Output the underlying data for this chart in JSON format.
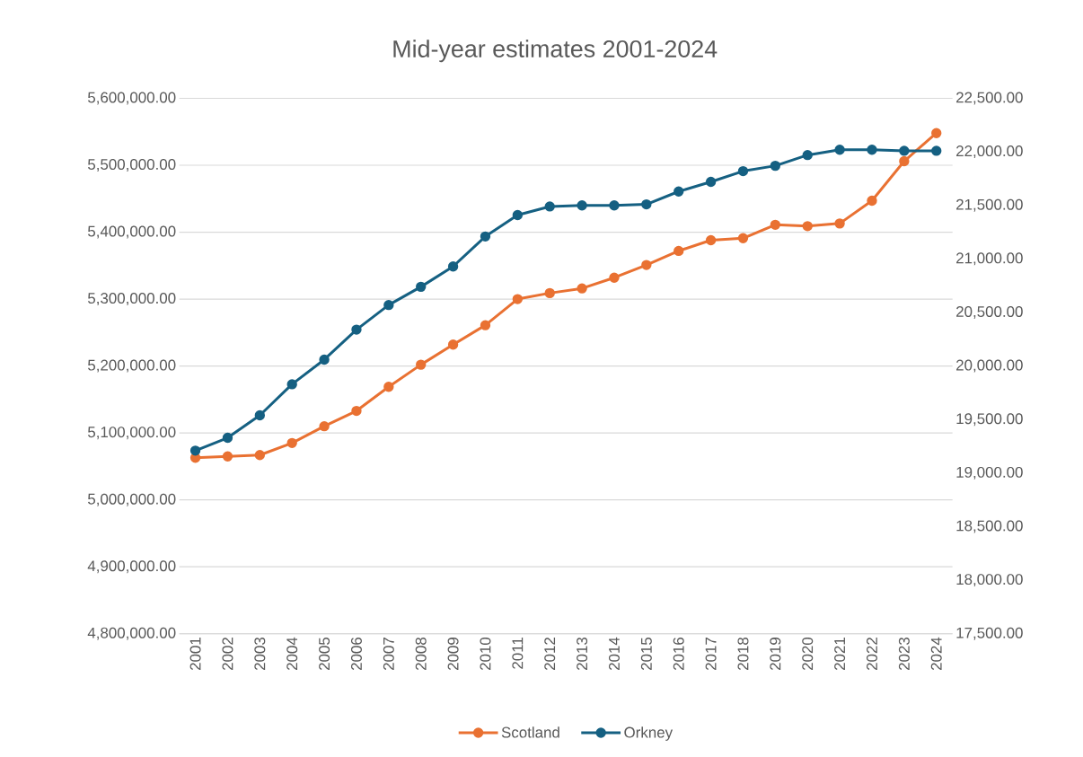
{
  "chart_data": {
    "type": "line",
    "title": "Mid-year estimates 2001-2024",
    "categories": [
      "2001",
      "2002",
      "2003",
      "2004",
      "2005",
      "2006",
      "2007",
      "2008",
      "2009",
      "2010",
      "2011",
      "2012",
      "2013",
      "2014",
      "2015",
      "2016",
      "2017",
      "2018",
      "2019",
      "2020",
      "2021",
      "2022",
      "2023",
      "2024"
    ],
    "series": [
      {
        "name": "Scotland",
        "color": "#e97132",
        "values": [
          5063000,
          5065000,
          5067000,
          5085000,
          5110000,
          5133000,
          5169000,
          5202000,
          5232000,
          5261000,
          5300000,
          5309000,
          5316000,
          5332000,
          5351000,
          5372000,
          5388000,
          5391000,
          5411000,
          5409000,
          5413000,
          5447000,
          5506000,
          5548000
        ]
      },
      {
        "name": "Orkney",
        "color": "#156082",
        "axis": "y2",
        "values": [
          19210,
          19330,
          19540,
          19830,
          20060,
          20340,
          20570,
          20740,
          20930,
          21210,
          21410,
          21490,
          21500,
          21500,
          21510,
          21630,
          21720,
          21820,
          21870,
          21970,
          22020,
          22020,
          22010,
          22010
        ]
      }
    ],
    "ylim": [
      4800000,
      5600000
    ],
    "yticks": [
      {
        "value": 4800000,
        "label": "4,800,000.00"
      },
      {
        "value": 4900000,
        "label": "4,900,000.00"
      },
      {
        "value": 5000000,
        "label": "5,000,000.00"
      },
      {
        "value": 5100000,
        "label": "5,100,000.00"
      },
      {
        "value": 5200000,
        "label": "5,200,000.00"
      },
      {
        "value": 5300000,
        "label": "5,300,000.00"
      },
      {
        "value": 5400000,
        "label": "5,400,000.00"
      },
      {
        "value": 5500000,
        "label": "5,500,000.00"
      },
      {
        "value": 5600000,
        "label": "5,600,000.00"
      }
    ],
    "y2lim": [
      17500,
      22500
    ],
    "y2ticks": [
      {
        "value": 17500,
        "label": "17,500.00"
      },
      {
        "value": 18000,
        "label": "18,000.00"
      },
      {
        "value": 18500,
        "label": "18,500.00"
      },
      {
        "value": 19000,
        "label": "19,000.00"
      },
      {
        "value": 19500,
        "label": "19,500.00"
      },
      {
        "value": 20000,
        "label": "20,000.00"
      },
      {
        "value": 20500,
        "label": "20,500.00"
      },
      {
        "value": 21000,
        "label": "21,000.00"
      },
      {
        "value": 21500,
        "label": "21,500.00"
      },
      {
        "value": 22000,
        "label": "22,000.00"
      },
      {
        "value": 22500,
        "label": "22,500.00"
      }
    ],
    "grid": "y",
    "legend": "bottom",
    "marker": "circle"
  }
}
